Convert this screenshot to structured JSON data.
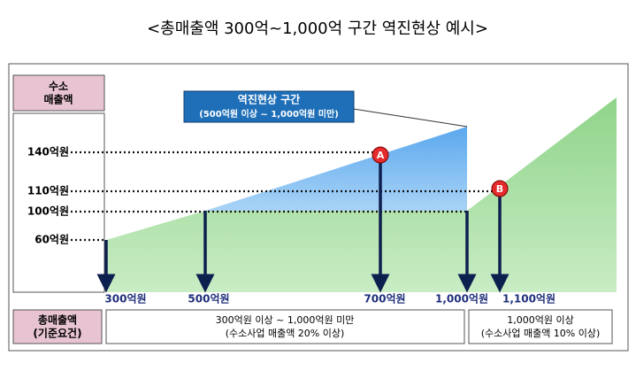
{
  "title": "<총매출액 300억~1,000억 구간 역진현상 예시>",
  "y_header": [
    "수소",
    "매출액"
  ],
  "y_labels": [
    "140억원",
    "110억원",
    "100억원",
    "60억원"
  ],
  "x_labels": [
    "300억원",
    "500억원",
    "700억원",
    "1,000억원",
    "1,100억원"
  ],
  "callout": {
    "title": "역진현상 구간",
    "subtitle": "(500억원 이상 ~ 1,000억원 미만)"
  },
  "markers": [
    "A",
    "B"
  ],
  "criteria": {
    "header": [
      "총매출액",
      "(기준요건)"
    ],
    "boxes": [
      [
        "300억원 이상 ~ 1,000억원 미만",
        "(수소사업 매출액 20% 이상)"
      ],
      [
        "1,000억원 이상",
        "(수소사업 매출액 10% 이상)"
      ]
    ]
  }
}
